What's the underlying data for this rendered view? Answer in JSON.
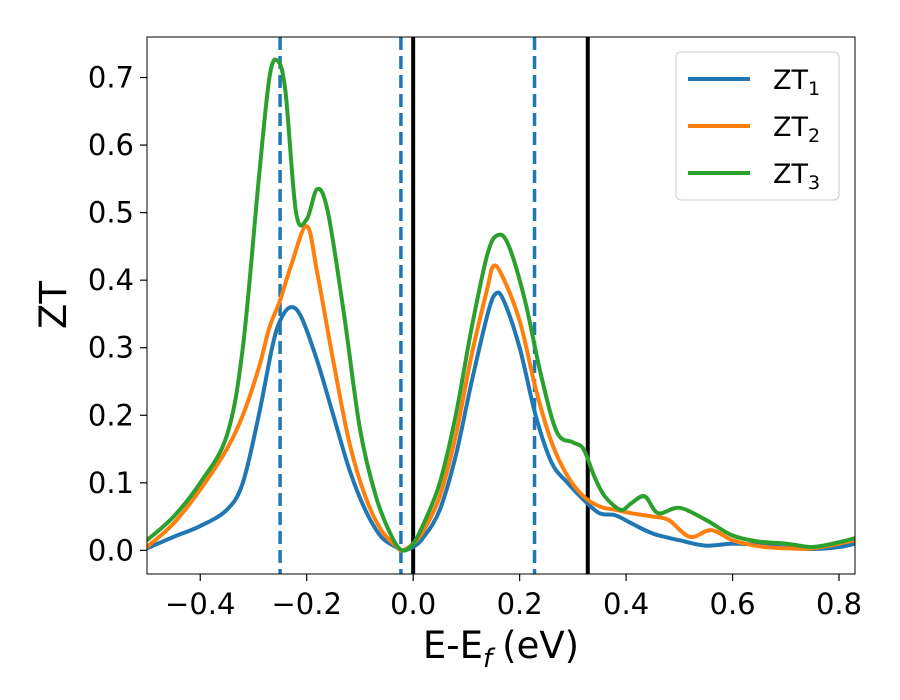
{
  "chart_data": {
    "type": "line",
    "xlabel": "E-E",
    "xlabel_subscript": "f",
    "xlabel_unit": "(eV)",
    "ylabel": "ZT",
    "xlim": [
      -0.5,
      0.83
    ],
    "ylim": [
      -0.035,
      0.76
    ],
    "x_ticks": [
      -0.4,
      -0.2,
      0.0,
      0.2,
      0.4,
      0.6,
      0.8
    ],
    "x_tick_labels": [
      "−0.4",
      "−0.2",
      "0.0",
      "0.2",
      "0.4",
      "0.6",
      "0.8"
    ],
    "y_ticks": [
      0.0,
      0.1,
      0.2,
      0.3,
      0.4,
      0.5,
      0.6,
      0.7
    ],
    "y_tick_labels": [
      "0.0",
      "0.1",
      "0.2",
      "0.3",
      "0.4",
      "0.5",
      "0.6",
      "0.7"
    ],
    "grid": false,
    "legend_position": "top-right",
    "series": [
      {
        "name": "ZT",
        "name_subscript": "1",
        "color": "#1f77b4",
        "points": [
          [
            -0.5,
            0.003
          ],
          [
            -0.45,
            0.02
          ],
          [
            -0.4,
            0.036
          ],
          [
            -0.35,
            0.06
          ],
          [
            -0.32,
            0.1
          ],
          [
            -0.29,
            0.2
          ],
          [
            -0.265,
            0.3
          ],
          [
            -0.25,
            0.34
          ],
          [
            -0.23,
            0.36
          ],
          [
            -0.21,
            0.345
          ],
          [
            -0.18,
            0.28
          ],
          [
            -0.15,
            0.2
          ],
          [
            -0.12,
            0.12
          ],
          [
            -0.09,
            0.06
          ],
          [
            -0.06,
            0.02
          ],
          [
            -0.03,
            0.004
          ],
          [
            -0.02,
            0.0
          ],
          [
            0.0,
            0.005
          ],
          [
            0.02,
            0.02
          ],
          [
            0.05,
            0.06
          ],
          [
            0.08,
            0.14
          ],
          [
            0.11,
            0.25
          ],
          [
            0.14,
            0.35
          ],
          [
            0.155,
            0.38
          ],
          [
            0.17,
            0.37
          ],
          [
            0.2,
            0.3
          ],
          [
            0.23,
            0.2
          ],
          [
            0.26,
            0.13
          ],
          [
            0.29,
            0.1
          ],
          [
            0.32,
            0.075
          ],
          [
            0.35,
            0.055
          ],
          [
            0.38,
            0.052
          ],
          [
            0.41,
            0.04
          ],
          [
            0.45,
            0.025
          ],
          [
            0.5,
            0.015
          ],
          [
            0.55,
            0.007
          ],
          [
            0.6,
            0.01
          ],
          [
            0.65,
            0.008
          ],
          [
            0.7,
            0.004
          ],
          [
            0.75,
            0.002
          ],
          [
            0.8,
            0.005
          ],
          [
            0.83,
            0.01
          ]
        ]
      },
      {
        "name": "ZT",
        "name_subscript": "2",
        "color": "#ff7f0e",
        "points": [
          [
            -0.5,
            0.005
          ],
          [
            -0.45,
            0.04
          ],
          [
            -0.4,
            0.09
          ],
          [
            -0.35,
            0.15
          ],
          [
            -0.32,
            0.2
          ],
          [
            -0.29,
            0.27
          ],
          [
            -0.27,
            0.33
          ],
          [
            -0.25,
            0.37
          ],
          [
            -0.23,
            0.42
          ],
          [
            -0.2,
            0.48
          ],
          [
            -0.18,
            0.41
          ],
          [
            -0.15,
            0.28
          ],
          [
            -0.12,
            0.16
          ],
          [
            -0.09,
            0.08
          ],
          [
            -0.06,
            0.03
          ],
          [
            -0.03,
            0.005
          ],
          [
            -0.02,
            0.0
          ],
          [
            0.0,
            0.01
          ],
          [
            0.02,
            0.03
          ],
          [
            0.05,
            0.08
          ],
          [
            0.08,
            0.17
          ],
          [
            0.11,
            0.29
          ],
          [
            0.14,
            0.39
          ],
          [
            0.15,
            0.42
          ],
          [
            0.165,
            0.41
          ],
          [
            0.2,
            0.34
          ],
          [
            0.23,
            0.24
          ],
          [
            0.26,
            0.16
          ],
          [
            0.29,
            0.11
          ],
          [
            0.32,
            0.08
          ],
          [
            0.35,
            0.065
          ],
          [
            0.38,
            0.06
          ],
          [
            0.41,
            0.055
          ],
          [
            0.45,
            0.05
          ],
          [
            0.48,
            0.045
          ],
          [
            0.52,
            0.02
          ],
          [
            0.56,
            0.03
          ],
          [
            0.6,
            0.015
          ],
          [
            0.65,
            0.006
          ],
          [
            0.7,
            0.003
          ],
          [
            0.75,
            0.003
          ],
          [
            0.8,
            0.01
          ],
          [
            0.83,
            0.015
          ]
        ]
      },
      {
        "name": "ZT",
        "name_subscript": "3",
        "color": "#2ca02c",
        "points": [
          [
            -0.5,
            0.015
          ],
          [
            -0.45,
            0.05
          ],
          [
            -0.4,
            0.1
          ],
          [
            -0.35,
            0.17
          ],
          [
            -0.32,
            0.3
          ],
          [
            -0.29,
            0.55
          ],
          [
            -0.27,
            0.7
          ],
          [
            -0.255,
            0.725
          ],
          [
            -0.24,
            0.68
          ],
          [
            -0.22,
            0.5
          ],
          [
            -0.2,
            0.49
          ],
          [
            -0.18,
            0.535
          ],
          [
            -0.16,
            0.5
          ],
          [
            -0.13,
            0.35
          ],
          [
            -0.1,
            0.18
          ],
          [
            -0.07,
            0.08
          ],
          [
            -0.04,
            0.02
          ],
          [
            -0.02,
            0.0
          ],
          [
            0.0,
            0.01
          ],
          [
            0.02,
            0.04
          ],
          [
            0.05,
            0.1
          ],
          [
            0.08,
            0.2
          ],
          [
            0.11,
            0.33
          ],
          [
            0.14,
            0.44
          ],
          [
            0.16,
            0.467
          ],
          [
            0.18,
            0.45
          ],
          [
            0.21,
            0.37
          ],
          [
            0.24,
            0.26
          ],
          [
            0.27,
            0.175
          ],
          [
            0.3,
            0.16
          ],
          [
            0.32,
            0.15
          ],
          [
            0.34,
            0.11
          ],
          [
            0.36,
            0.08
          ],
          [
            0.39,
            0.06
          ],
          [
            0.41,
            0.07
          ],
          [
            0.435,
            0.08
          ],
          [
            0.46,
            0.055
          ],
          [
            0.5,
            0.063
          ],
          [
            0.55,
            0.045
          ],
          [
            0.6,
            0.022
          ],
          [
            0.65,
            0.013
          ],
          [
            0.7,
            0.01
          ],
          [
            0.75,
            0.005
          ],
          [
            0.8,
            0.012
          ],
          [
            0.83,
            0.018
          ]
        ]
      }
    ],
    "vertical_lines": [
      {
        "x": -0.25,
        "style": "dashed",
        "color": "#1f77b4"
      },
      {
        "x": -0.023,
        "style": "dashed",
        "color": "#1f77b4"
      },
      {
        "x": 0.0,
        "style": "solid",
        "color": "#000000"
      },
      {
        "x": 0.228,
        "style": "dashed",
        "color": "#1f77b4"
      },
      {
        "x": 0.328,
        "style": "solid",
        "color": "#000000"
      }
    ]
  }
}
